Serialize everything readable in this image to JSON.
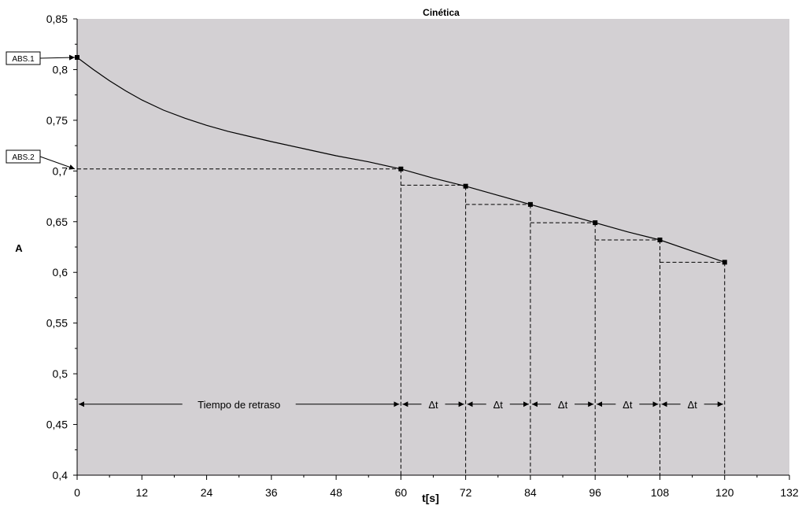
{
  "chart_data": {
    "type": "line",
    "title": "Cinética",
    "xlabel": "t[s]",
    "ylabel": "A",
    "xlim": [
      0,
      132
    ],
    "ylim": [
      0.4,
      0.85
    ],
    "grid": false,
    "x_ticks": [
      0,
      12,
      24,
      36,
      48,
      60,
      72,
      84,
      96,
      108,
      120,
      132
    ],
    "y_ticks": [
      0.4,
      0.45,
      0.5,
      0.55,
      0.6,
      0.65,
      0.7,
      0.75,
      0.8,
      0.85
    ],
    "x_tick_labels": [
      "0",
      "12",
      "24",
      "36",
      "48",
      "60",
      "72",
      "84",
      "96",
      "108",
      "120",
      "132"
    ],
    "y_tick_labels": [
      "0,4",
      "0,45",
      "0,5",
      "0,55",
      "0,6",
      "0,65",
      "0,7",
      "0,75",
      "0,8",
      "0,85"
    ],
    "series": [
      {
        "x": [
          0,
          3,
          6,
          9,
          12,
          16,
          20,
          24,
          28,
          32,
          36,
          42,
          48,
          54,
          60,
          66,
          72,
          78,
          84,
          90,
          96,
          102,
          108,
          114,
          120
        ],
        "y": [
          0.812,
          0.8,
          0.789,
          0.779,
          0.77,
          0.76,
          0.752,
          0.745,
          0.739,
          0.734,
          0.729,
          0.722,
          0.715,
          0.709,
          0.702,
          0.693,
          0.685,
          0.676,
          0.667,
          0.658,
          0.649,
          0.64,
          0.632,
          0.621,
          0.61
        ],
        "color": "#000000"
      }
    ],
    "markers": {
      "x": [
        0,
        60,
        72,
        84,
        96,
        108,
        120
      ],
      "y": [
        0.812,
        0.702,
        0.685,
        0.667,
        0.649,
        0.632,
        0.61
      ]
    },
    "callouts": [
      {
        "label": "ABS.1",
        "x": 0,
        "y": 0.812
      },
      {
        "label": "ABS.2",
        "x": 0,
        "y": 0.702
      }
    ],
    "step_lines": [
      {
        "x1": 60,
        "x2": 72,
        "y": 0.686
      },
      {
        "x1": 72,
        "x2": 84,
        "y": 0.667
      },
      {
        "x1": 84,
        "x2": 96,
        "y": 0.649
      },
      {
        "x1": 96,
        "x2": 108,
        "y": 0.632
      },
      {
        "x1": 108,
        "x2": 120,
        "y": 0.61
      }
    ],
    "abs2_line": {
      "x1": 0,
      "x2": 60,
      "y": 0.702
    },
    "interval_annotations": {
      "y": 0.47,
      "spans": [
        {
          "label": "Tiempo de retraso",
          "x1": 0,
          "x2": 60
        },
        {
          "label": "Δt",
          "x1": 60,
          "x2": 72
        },
        {
          "label": "Δt",
          "x1": 72,
          "x2": 84
        },
        {
          "label": "Δt",
          "x1": 84,
          "x2": 96
        },
        {
          "label": "Δt",
          "x1": 96,
          "x2": 108
        },
        {
          "label": "Δt",
          "x1": 108,
          "x2": 120
        }
      ]
    },
    "colors": {
      "plot_background": "#d3d0d3",
      "page_background": "#ffffff",
      "line": "#000000"
    }
  }
}
